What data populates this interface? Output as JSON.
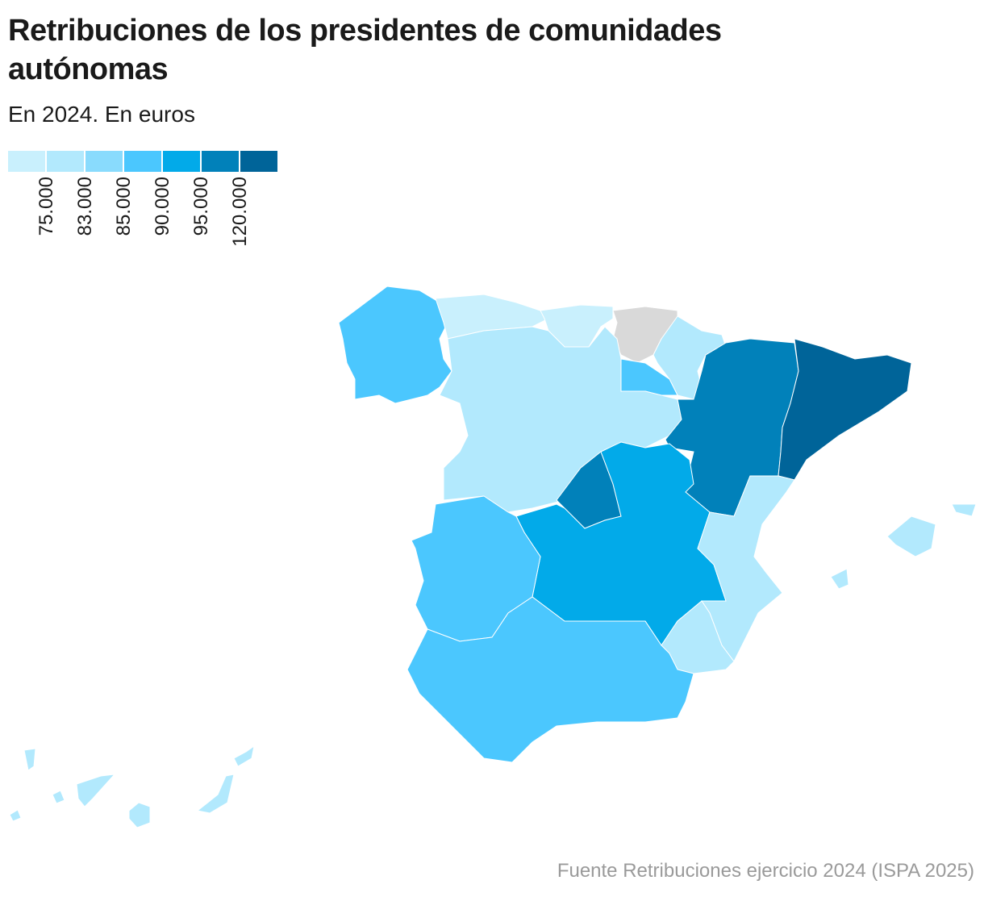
{
  "title": "Retribuciones de los presidentes de comunidades autónomas",
  "subtitle": "En 2024. En euros",
  "legend": {
    "colors": [
      "#c9f0fd",
      "#b2e9fd",
      "#89dbfd",
      "#4bc7fe",
      "#02aae9",
      "#0181ba",
      "#006499"
    ],
    "labels": [
      "75.000",
      "83.000",
      "85.000",
      "90.000",
      "95.000",
      "120.000"
    ]
  },
  "map": {
    "no_data_color": "#d9d9d9",
    "border_color": "#ffffff",
    "region_band": {
      "galicia": 3,
      "asturias": 0,
      "cantabria": 0,
      "pais-vasco": null,
      "navarra": 1,
      "la-rioja": 3,
      "castilla-y-leon": 1,
      "aragon": 5,
      "cataluna": 6,
      "madrid": 5,
      "castilla-la-mancha": 4,
      "comunidad-valenciana": 1,
      "region-de-murcia": 1,
      "extremadura": 3,
      "andalucia": 3,
      "illes-balears": 1,
      "canarias": 1
    }
  },
  "source": "Fuente Retribuciones ejercicio 2024 (ISPA 2025)"
}
